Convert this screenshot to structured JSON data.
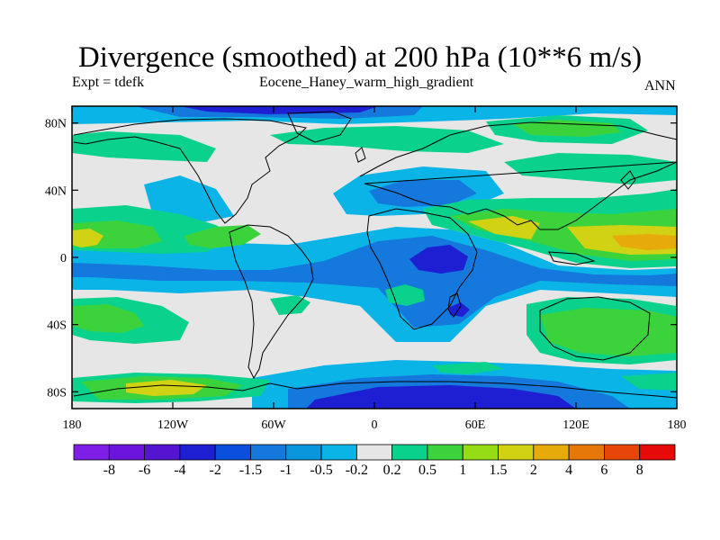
{
  "header": {
    "title": "Divergence (smoothed) at 200 hPa (10**6 m/s)",
    "expt": "Expt = tdefk",
    "run": "Eocene_Haney_warm_high_gradient",
    "season": "ANN"
  },
  "map": {
    "projection": "cylindrical equidistant",
    "lon_range": [
      -180,
      180
    ],
    "lat_range": [
      -90,
      90
    ],
    "lat_ticks": [
      {
        "value": 80,
        "label": "80N"
      },
      {
        "value": 40,
        "label": "40N"
      },
      {
        "value": 0,
        "label": "0"
      },
      {
        "value": -40,
        "label": "40S"
      },
      {
        "value": -80,
        "label": "80S"
      }
    ],
    "lon_ticks": [
      {
        "value": -180,
        "label": "180"
      },
      {
        "value": -120,
        "label": "120W"
      },
      {
        "value": -60,
        "label": "60W"
      },
      {
        "value": 0,
        "label": "0"
      },
      {
        "value": 60,
        "label": "60E"
      },
      {
        "value": 120,
        "label": "120E"
      },
      {
        "value": 180,
        "label": "180"
      }
    ],
    "coastline_color": "#000000",
    "background_color": "#e6e6e6"
  },
  "colorbar": {
    "boxes": [
      {
        "color": "#7f1ee6"
      },
      {
        "color": "#6a14dc"
      },
      {
        "color": "#5514d2"
      },
      {
        "color": "#1e1ed2"
      },
      {
        "color": "#0a50dc"
      },
      {
        "color": "#1478dc"
      },
      {
        "color": "#0a96dc"
      },
      {
        "color": "#0ab4e6"
      },
      {
        "color": "#e6e6e6"
      },
      {
        "color": "#0ad28c"
      },
      {
        "color": "#3cd23c"
      },
      {
        "color": "#96dc14"
      },
      {
        "color": "#d2d214"
      },
      {
        "color": "#e6aa0a"
      },
      {
        "color": "#e6780a"
      },
      {
        "color": "#e6460a"
      },
      {
        "color": "#e60a0a"
      }
    ],
    "labels": [
      "-8",
      "-6",
      "-4",
      "-2",
      "-1.5",
      "-1",
      "-0.5",
      "-0.2",
      "0.2",
      "0.5",
      "1",
      "1.5",
      "2",
      "4",
      "6",
      "8"
    ]
  }
}
